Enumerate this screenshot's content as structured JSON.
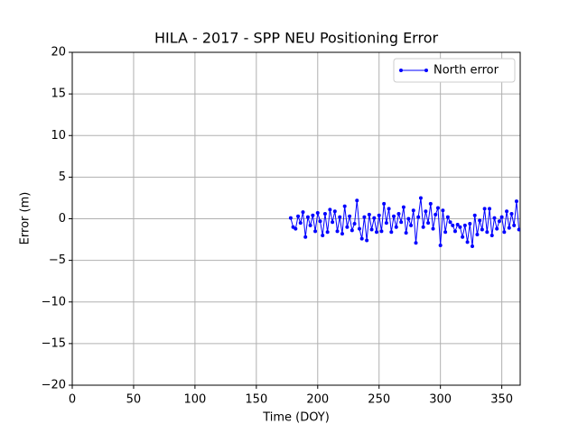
{
  "chart_data": {
    "type": "line",
    "title": "HILA - 2017 - SPP NEU Positioning Error",
    "xlabel": "Time (DOY)",
    "ylabel": "Error (m)",
    "x": [
      178,
      180,
      182,
      184,
      186,
      188,
      190,
      192,
      194,
      196,
      198,
      200,
      202,
      204,
      206,
      208,
      210,
      212,
      214,
      216,
      218,
      220,
      222,
      224,
      226,
      228,
      230,
      232,
      234,
      236,
      238,
      240,
      242,
      244,
      246,
      248,
      250,
      252,
      254,
      256,
      258,
      260,
      262,
      264,
      266,
      268,
      270,
      272,
      274,
      276,
      278,
      280,
      282,
      284,
      286,
      288,
      290,
      292,
      294,
      296,
      298,
      300,
      302,
      304,
      306,
      308,
      310,
      312,
      314,
      316,
      318,
      320,
      322,
      324,
      326,
      328,
      330,
      332,
      334,
      336,
      338,
      340,
      342,
      344,
      346,
      348,
      350,
      352,
      354,
      356,
      358,
      360,
      362,
      364
    ],
    "series": [
      {
        "name": "North error",
        "color": "#0000ff",
        "values": [
          0.1,
          -1.0,
          -1.2,
          0.3,
          -0.5,
          0.8,
          -2.2,
          0.2,
          -0.8,
          0.4,
          -1.5,
          0.7,
          -0.3,
          -2.0,
          0.6,
          -1.6,
          1.1,
          -0.4,
          0.9,
          -1.5,
          0.2,
          -1.8,
          1.5,
          -1.0,
          0.3,
          -1.4,
          -0.6,
          2.2,
          -1.2,
          -2.4,
          0.2,
          -2.6,
          0.5,
          -1.3,
          0.1,
          -1.6,
          0.4,
          -1.5,
          1.8,
          -0.5,
          1.2,
          -1.6,
          0.3,
          -1.0,
          0.6,
          -0.4,
          1.4,
          -1.7,
          0.0,
          -0.8,
          1.0,
          -2.9,
          0.2,
          2.5,
          -1.0,
          0.9,
          -0.5,
          1.8,
          -1.2,
          0.5,
          1.3,
          -3.2,
          1.0,
          -1.6,
          0.2,
          -0.4,
          -0.8,
          -1.5,
          -0.7,
          -1.0,
          -2.2,
          -0.8,
          -2.8,
          -0.6,
          -3.3,
          0.4,
          -1.9,
          -0.2,
          -1.3,
          1.2,
          -1.6,
          1.2,
          -2.0,
          0.1,
          -1.2,
          -0.3,
          0.2,
          -1.6,
          0.9,
          -1.1,
          0.6,
          -0.8,
          2.1,
          -1.3
        ]
      }
    ],
    "xlim": [
      0,
      365
    ],
    "xticks": [
      0,
      50,
      100,
      150,
      200,
      250,
      300,
      350
    ],
    "ylim": [
      -20,
      20
    ],
    "yticks": [
      {
        "value": -20,
        "label": "−20"
      },
      {
        "value": -15,
        "label": "−15"
      },
      {
        "value": -10,
        "label": "−10"
      },
      {
        "value": -5,
        "label": "−5"
      },
      0,
      5,
      10,
      15,
      20
    ],
    "grid": true,
    "legend": "upper right"
  }
}
